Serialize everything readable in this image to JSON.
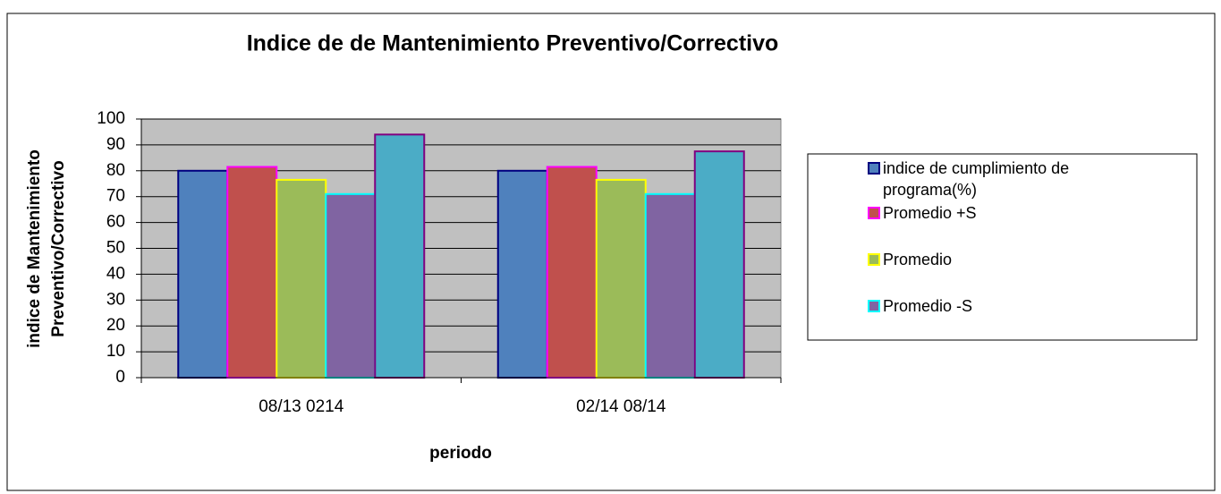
{
  "chart_data": {
    "type": "bar",
    "title": "Indice de de Mantenimiento Preventivo/Correctivo",
    "y_label": "indice de Mantenimiento Preventivo/Correctivo",
    "x_label": "periodo",
    "categories": [
      "08/13 0214",
      "02/14 08/14"
    ],
    "series": [
      {
        "name": "indice de cumplimiento de programa(%)",
        "color": "#4f81bd",
        "edge": "#000080",
        "values": [
          80,
          80
        ]
      },
      {
        "name": "Promedio +S",
        "color": "#c0504d",
        "edge": "#ff00ff",
        "values": [
          81.5,
          81.5
        ]
      },
      {
        "name": "Promedio",
        "color": "#9bbb59",
        "edge": "#ffff00",
        "values": [
          76.5,
          76.5
        ]
      },
      {
        "name": "Promedio -S",
        "color": "#8064a2",
        "edge": "#00ffff",
        "values": [
          71,
          71
        ]
      },
      {
        "color": "#4bacc6",
        "edge": "#800080",
        "values": [
          94,
          87.5
        ]
      }
    ],
    "ylim": [
      0,
      100
    ],
    "yticks": [
      0,
      10,
      20,
      30,
      40,
      50,
      60,
      70,
      80,
      90,
      100
    ],
    "grid": true,
    "plot_background": "#c0c0c0",
    "legend": "right"
  }
}
